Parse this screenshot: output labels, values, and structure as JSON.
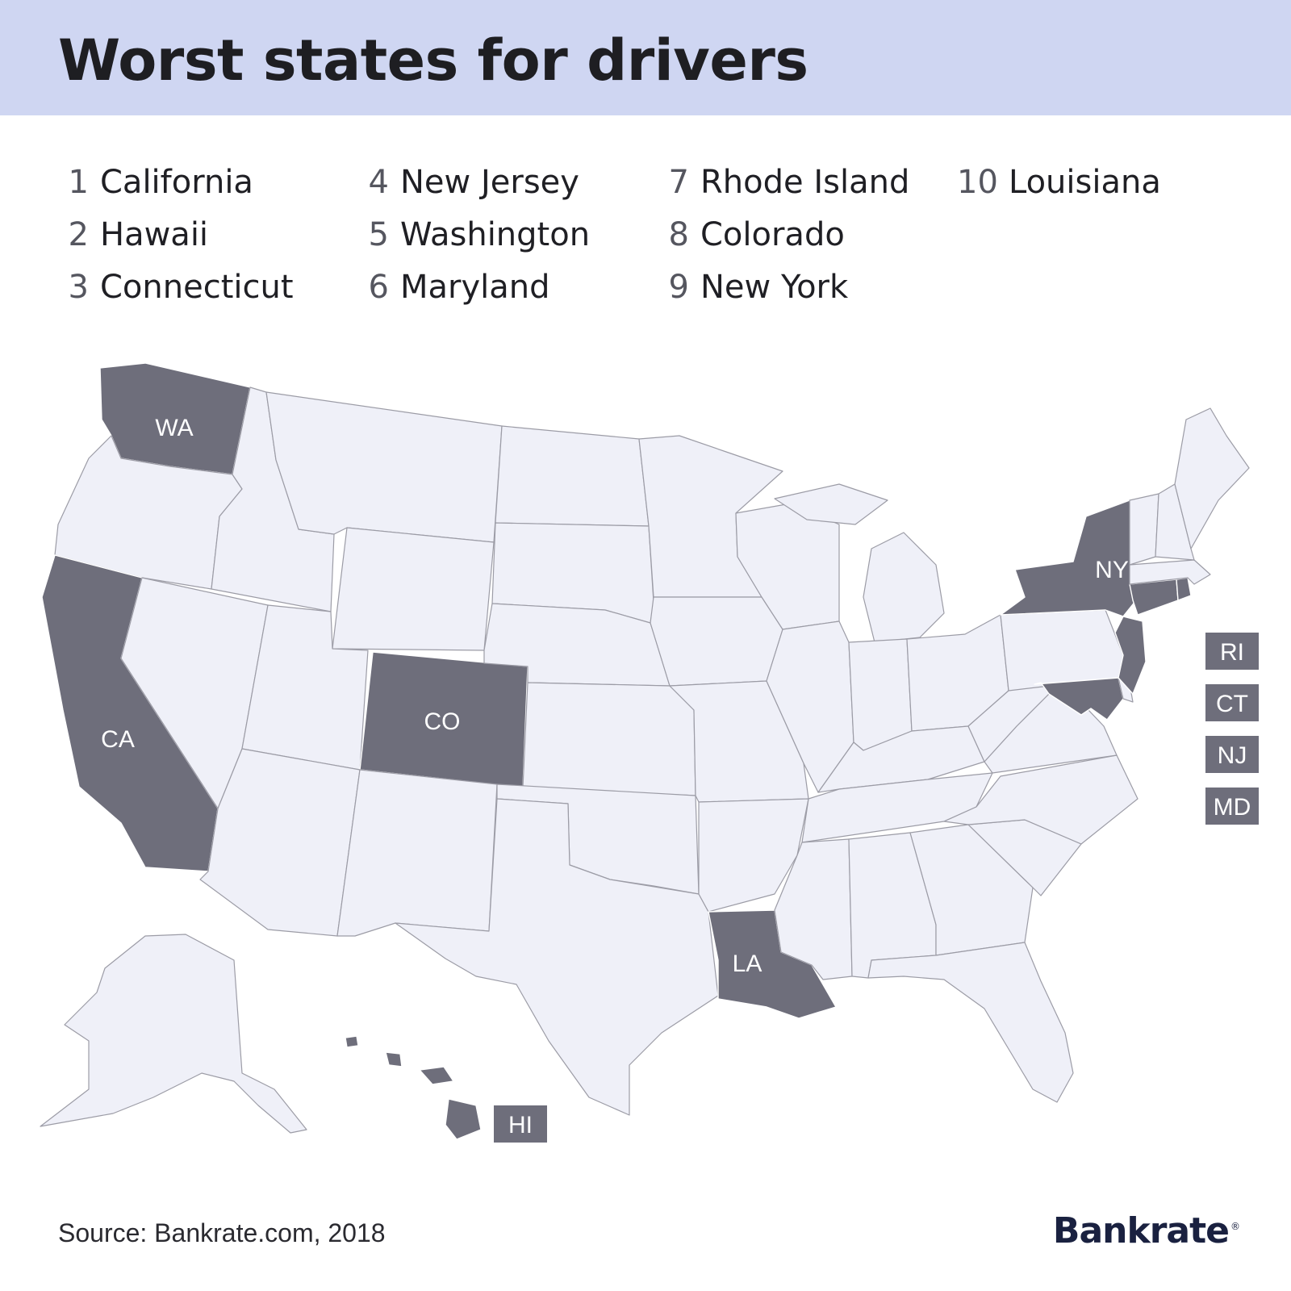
{
  "title": "Worst states for drivers",
  "ranking": [
    {
      "rank": "1",
      "state": "California"
    },
    {
      "rank": "2",
      "state": "Hawaii"
    },
    {
      "rank": "3",
      "state": "Connecticut"
    },
    {
      "rank": "4",
      "state": "New Jersey"
    },
    {
      "rank": "5",
      "state": "Washington"
    },
    {
      "rank": "6",
      "state": "Maryland"
    },
    {
      "rank": "7",
      "state": "Rhode Island"
    },
    {
      "rank": "8",
      "state": "Colorado"
    },
    {
      "rank": "9",
      "state": "New York"
    },
    {
      "rank": "10",
      "state": "Louisiana"
    }
  ],
  "map": {
    "highlight_color": "#6e6e7b",
    "base_color": "#eff0f8",
    "labels": {
      "WA": "WA",
      "CA": "CA",
      "CO": "CO",
      "NY": "NY",
      "LA": "LA"
    },
    "callouts": {
      "RI": "RI",
      "CT": "CT",
      "NJ": "NJ",
      "MD": "MD",
      "HI": "HI"
    }
  },
  "footer": {
    "source": "Source: Bankrate.com, 2018",
    "logo": "Bankrate",
    "logo_mark": "®"
  }
}
